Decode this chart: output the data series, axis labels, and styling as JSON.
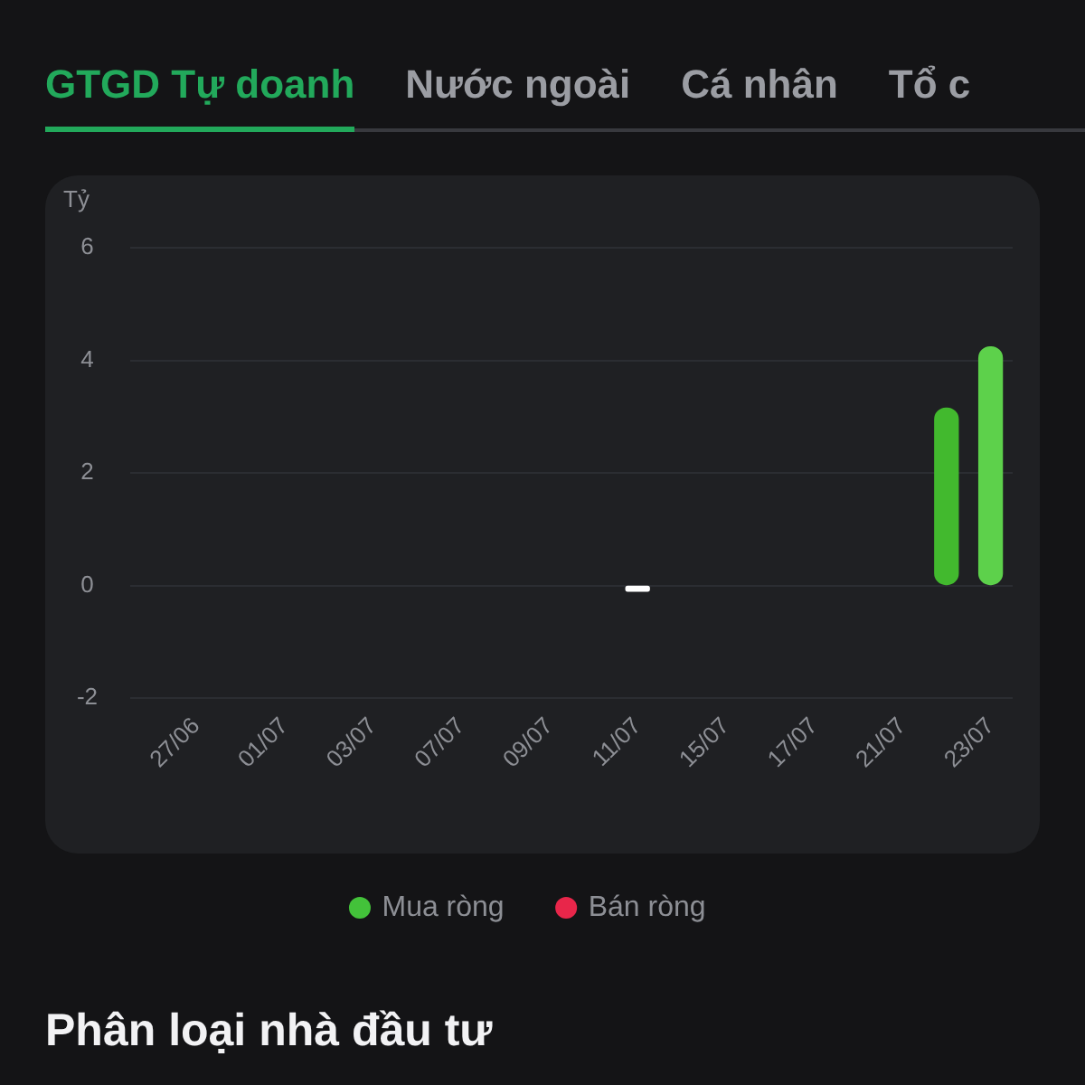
{
  "chart_data": {
    "type": "bar",
    "title": "GTGD Tự doanh",
    "ylabel": "Tỷ",
    "annotations": [
      "Nước ngoài",
      "Cá nhân",
      "Tổ c",
      "Phân loại nhà đầu tư"
    ],
    "categories": [
      null,
      "27/06",
      null,
      "01/07",
      null,
      "03/07",
      null,
      "07/07",
      null,
      "09/07",
      null,
      "11/07",
      null,
      "15/07",
      null,
      "17/07",
      null,
      "21/07",
      null,
      "23/07"
    ],
    "series": [
      {
        "name": "Mua ròng",
        "color": "#43c23a",
        "colors": [
          "#43c23a",
          "#43c23a",
          "#43c23a",
          "#43c23a",
          "#43c23a",
          "#43c23a",
          "#43c23a",
          "#43c23a",
          "#43c23a",
          "#43c23a",
          "#43c23a",
          "#ffffff",
          "#43c23a",
          "#43c23a",
          "#43c23a",
          "#43c23a",
          "#43c23a",
          "#43c23a",
          "#42b92e",
          "#5dd14b"
        ],
        "values": [
          null,
          null,
          null,
          null,
          null,
          null,
          null,
          null,
          null,
          null,
          null,
          -0.1,
          null,
          null,
          null,
          null,
          null,
          null,
          3.15,
          4.24
        ]
      },
      {
        "name": "Bán ròng",
        "color": "#e8264a",
        "values": [
          null,
          null,
          null,
          null,
          null,
          null,
          null,
          null,
          null,
          null,
          null,
          null,
          null,
          null,
          null,
          null,
          null,
          null,
          null,
          null
        ]
      }
    ],
    "ylim": [
      -2,
      6
    ],
    "yticks": [
      -2,
      0,
      2,
      4,
      6
    ],
    "grid": "y",
    "legend": "bottom"
  }
}
